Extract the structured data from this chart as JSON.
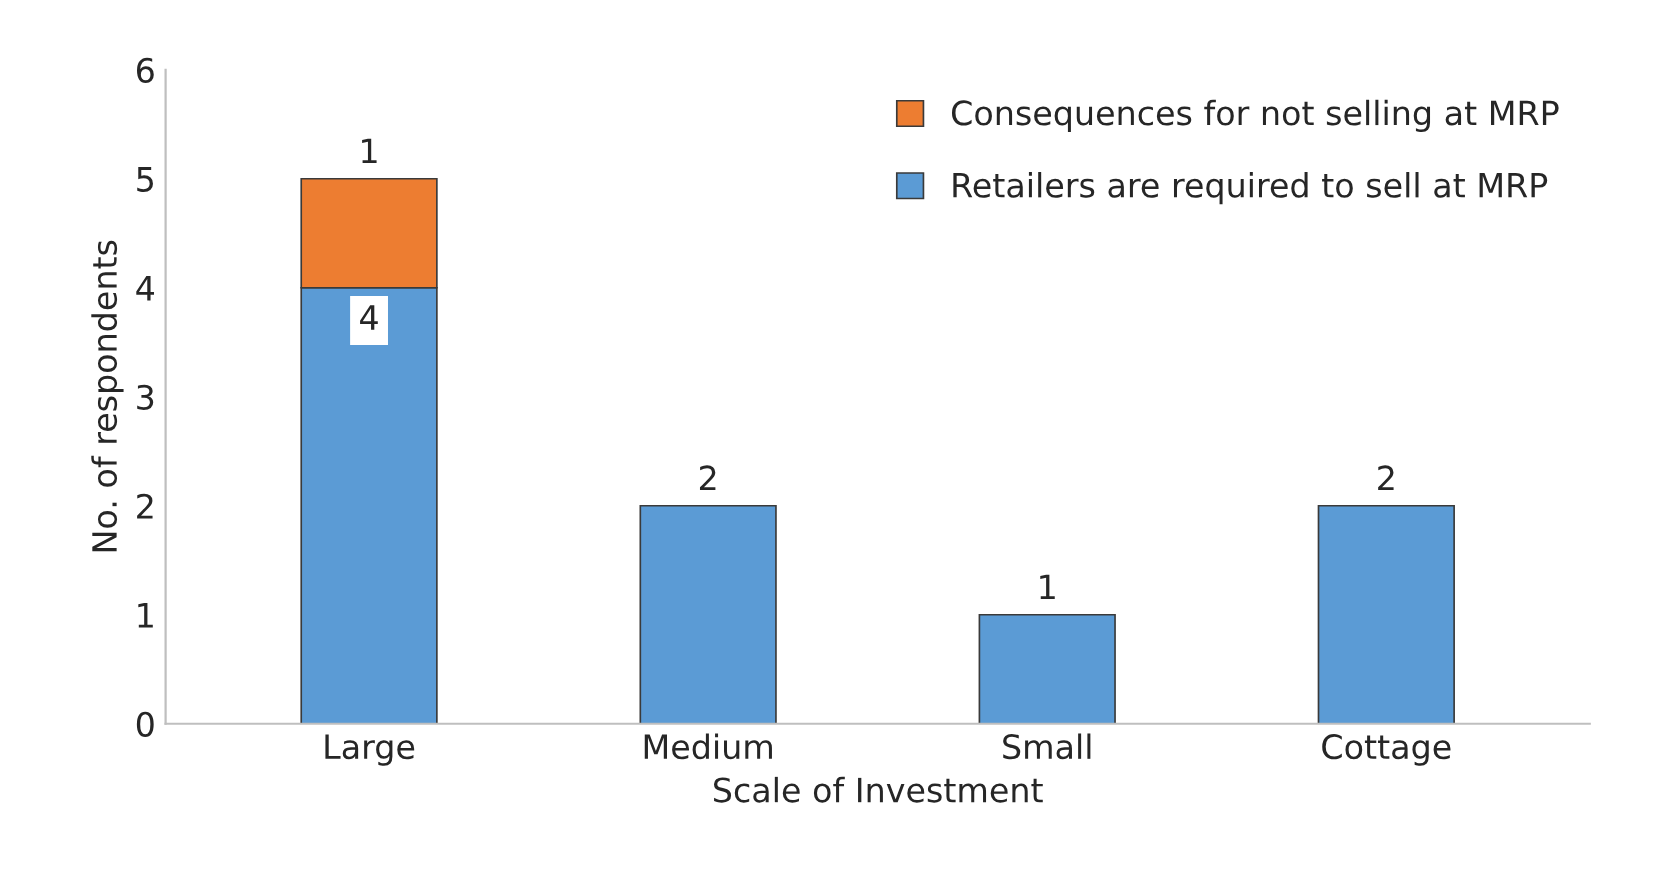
{
  "chart_data": {
    "type": "bar",
    "stacked": true,
    "xlabel": "Scale of Investment",
    "ylabel": "No. of respondents",
    "categories": [
      "Large",
      "Medium",
      "Small",
      "Cottage"
    ],
    "series": [
      {
        "name": "Retailers are required to sell at MRP",
        "color": "#5b9bd5",
        "values": [
          4,
          2,
          1,
          2
        ]
      },
      {
        "name": "Consequences for not selling at MRP",
        "color": "#ed7d31",
        "values": [
          1,
          null,
          null,
          null
        ]
      }
    ],
    "ylim": [
      0,
      6
    ],
    "yticks": [
      0,
      1,
      2,
      3,
      4,
      5,
      6
    ],
    "grid": false,
    "legend": "top right",
    "data_labels": true
  }
}
